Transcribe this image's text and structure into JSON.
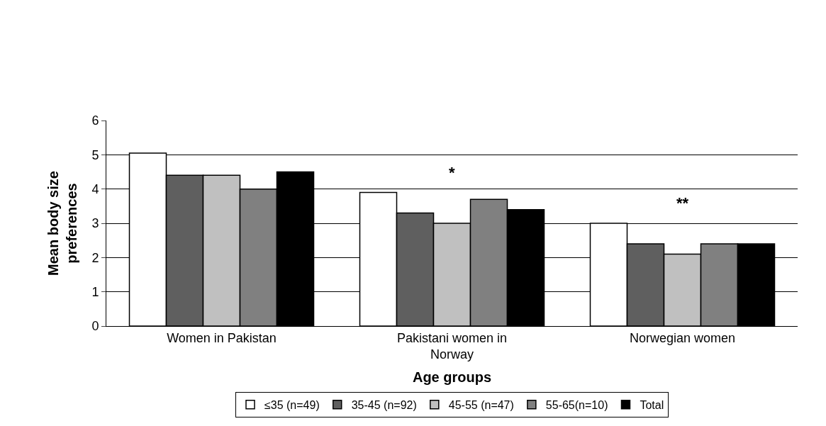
{
  "chart_data": {
    "type": "bar",
    "xlabel": "Age groups",
    "ylabel": "Mean body size preferences",
    "categories": [
      "Women in Pakistan",
      "Pakistani women in Norway",
      "Norwegian women"
    ],
    "series": [
      {
        "name": "≤35 (n=49)",
        "color": "#ffffff",
        "values": [
          5.05,
          3.9,
          3.0
        ]
      },
      {
        "name": "35-45 (n=92)",
        "color": "#5f5f5f",
        "values": [
          4.4,
          3.3,
          2.4
        ]
      },
      {
        "name": "45-55 (n=47)",
        "color": "#c0c0c0",
        "values": [
          4.4,
          3.0,
          2.1
        ]
      },
      {
        "name": "55-65(n=10)",
        "color": "#808080",
        "values": [
          4.0,
          3.7,
          2.4
        ]
      },
      {
        "name": "Total",
        "color": "#000000",
        "values": [
          4.5,
          3.4,
          2.4
        ]
      }
    ],
    "annotations": [
      "*",
      "**"
    ],
    "ylim": [
      0,
      6
    ],
    "yticks": [
      0,
      1,
      2,
      3,
      4,
      5,
      6
    ],
    "grid": "y",
    "legend": "bottom"
  }
}
